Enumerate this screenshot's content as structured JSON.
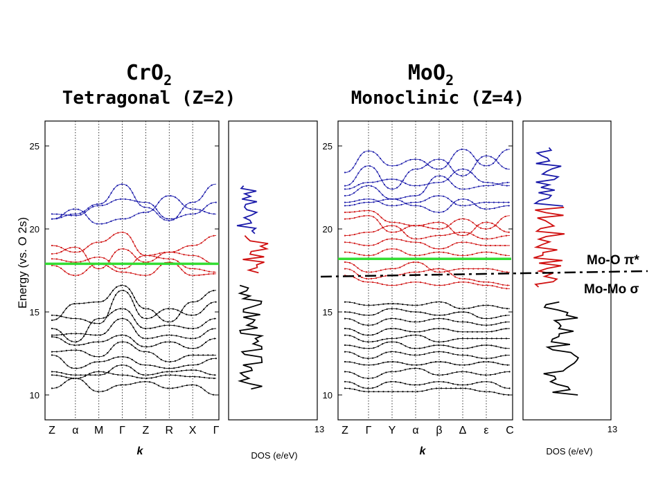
{
  "crO2": {
    "title_main": "CrO",
    "title_sub": "2",
    "subtitle": "Tetragonal (Z=2)"
  },
  "moO2": {
    "title_main": "MoO",
    "title_sub": "2",
    "subtitle": "Monoclinic (Z=4)"
  },
  "annotations": {
    "mo_o_pi": "Mo-O π*",
    "mo_mo_sigma": "Mo-Mo σ"
  },
  "colors": {
    "conduction_upper": "#1a1aaa",
    "conduction_lower": "#d01010",
    "valence": "#000000",
    "fermi": "#33dd33"
  },
  "chart_data": [
    {
      "type": "line",
      "name": "CrO2 band structure",
      "ylabel": "Energy (vs. O 2s)",
      "xlabel": "k",
      "ylim": [
        8.5,
        26.5
      ],
      "yticks": [
        10,
        15,
        20,
        25
      ],
      "kpoints": [
        "Z",
        "α",
        "M",
        "Γ",
        "Z",
        "R",
        "X",
        "Γ"
      ],
      "fermi_level": 17.9,
      "bands": {
        "blue": [
          {
            "y": [
              20.6,
              20.9,
              21.5,
              22.7,
              21.3,
              20.5,
              21.6,
              22.7
            ]
          },
          {
            "y": [
              20.9,
              20.8,
              21.4,
              21.8,
              21.6,
              20.6,
              20.9,
              21.6
            ]
          },
          {
            "y": [
              20.6,
              21.2,
              20.3,
              20.6,
              21.0,
              22.0,
              21.2,
              20.9
            ]
          }
        ],
        "red": [
          {
            "y": [
              19.0,
              18.6,
              19.2,
              19.8,
              18.4,
              18.6,
              19.0,
              19.6
            ]
          },
          {
            "y": [
              18.2,
              18.0,
              18.3,
              17.6,
              18.4,
              18.2,
              17.6,
              17.4
            ]
          },
          {
            "y": [
              18.5,
              18.9,
              17.6,
              18.8,
              18.0,
              18.6,
              18.4,
              17.9
            ]
          },
          {
            "y": [
              17.8,
              17.2,
              17.9,
              17.4,
              17.2,
              18.0,
              17.2,
              17.3
            ]
          }
        ],
        "black": [
          {
            "y": [
              14.5,
              15.5,
              15.6,
              16.6,
              15.2,
              14.4,
              15.6,
              16.3
            ]
          },
          {
            "y": [
              14.8,
              14.6,
              14.3,
              16.3,
              14.6,
              15.2,
              14.8,
              15.6
            ]
          },
          {
            "y": [
              14.0,
              13.2,
              14.6,
              15.2,
              14.0,
              14.2,
              14.0,
              14.6
            ]
          },
          {
            "y": [
              13.6,
              13.7,
              13.6,
              14.6,
              13.4,
              13.6,
              13.4,
              14.0
            ]
          },
          {
            "y": [
              13.5,
              13.0,
              13.2,
              13.6,
              12.9,
              13.2,
              12.8,
              13.4
            ]
          },
          {
            "y": [
              12.6,
              12.7,
              12.3,
              13.2,
              12.6,
              12.0,
              12.4,
              12.4
            ]
          },
          {
            "y": [
              12.4,
              11.6,
              12.0,
              12.3,
              11.8,
              11.6,
              11.8,
              12.2
            ]
          },
          {
            "y": [
              11.4,
              11.2,
              11.2,
              11.8,
              11.2,
              11.4,
              11.5,
              11.2
            ]
          },
          {
            "y": [
              11.2,
              11.0,
              11.4,
              11.2,
              11.0,
              11.2,
              11.1,
              11.0
            ]
          },
          {
            "y": [
              10.4,
              11.0,
              10.2,
              10.6,
              10.8,
              10.4,
              10.6,
              10.0
            ]
          }
        ]
      },
      "dos_xlabel": "DOS (e/eV)",
      "dos_xmax": 13
    },
    {
      "type": "line",
      "name": "MoO2 band structure",
      "xlabel": "k",
      "ylim": [
        8.5,
        26.5
      ],
      "yticks": [
        10,
        15,
        20,
        25
      ],
      "kpoints": [
        "Z",
        "Γ",
        "Y",
        "α",
        "β",
        "Δ",
        "ε",
        "C"
      ],
      "fermi_level": 18.2,
      "bands": {
        "blue": [
          {
            "y": [
              23.4,
              24.7,
              23.8,
              24.2,
              23.6,
              24.8,
              23.8,
              24.8
            ]
          },
          {
            "y": [
              22.6,
              23.8,
              22.4,
              23.6,
              24.2,
              23.2,
              24.4,
              23.6
            ]
          },
          {
            "y": [
              22.4,
              22.8,
              23.0,
              22.6,
              22.8,
              23.6,
              22.8,
              22.6
            ]
          },
          {
            "y": [
              22.0,
              22.6,
              21.8,
              22.0,
              23.2,
              22.4,
              22.6,
              22.8
            ]
          },
          {
            "y": [
              21.6,
              21.8,
              21.4,
              21.6,
              22.0,
              21.4,
              21.6,
              21.6
            ]
          },
          {
            "y": [
              21.4,
              21.6,
              21.8,
              21.4,
              21.0,
              21.8,
              21.2,
              21.4
            ]
          }
        ],
        "red": [
          {
            "y": [
              21.0,
              21.1,
              20.4,
              20.2,
              20.0,
              20.6,
              20.0,
              20.8
            ]
          },
          {
            "y": [
              20.6,
              20.8,
              19.8,
              20.2,
              20.4,
              19.6,
              20.4,
              19.8
            ]
          },
          {
            "y": [
              19.6,
              19.8,
              20.2,
              19.4,
              19.6,
              19.8,
              19.4,
              19.6
            ]
          },
          {
            "y": [
              19.2,
              19.0,
              19.4,
              19.2,
              18.8,
              19.2,
              19.0,
              19.0
            ]
          },
          {
            "y": [
              18.6,
              18.4,
              18.8,
              18.4,
              18.6,
              18.4,
              18.6,
              18.4
            ]
          },
          {
            "y": [
              18.0,
              17.4,
              17.6,
              18.0,
              17.4,
              17.6,
              17.6,
              17.4
            ]
          },
          {
            "y": [
              17.6,
              17.0,
              17.2,
              17.4,
              17.6,
              17.0,
              16.8,
              16.6
            ]
          },
          {
            "y": [
              17.2,
              16.8,
              16.6,
              16.8,
              16.6,
              16.8,
              16.6,
              16.4
            ]
          }
        ],
        "black": [
          {
            "y": [
              15.6,
              15.4,
              15.5,
              15.4,
              15.6,
              15.2,
              15.4,
              15.2
            ]
          },
          {
            "y": [
              15.0,
              14.8,
              15.2,
              15.0,
              14.8,
              15.0,
              14.6,
              14.8
            ]
          },
          {
            "y": [
              14.6,
              14.2,
              14.6,
              14.4,
              14.6,
              14.4,
              14.2,
              14.4
            ]
          },
          {
            "y": [
              14.0,
              13.6,
              14.0,
              13.8,
              14.0,
              13.8,
              13.8,
              14.0
            ]
          },
          {
            "y": [
              13.6,
              13.2,
              13.4,
              13.6,
              13.2,
              13.4,
              13.4,
              13.4
            ]
          },
          {
            "y": [
              13.0,
              12.8,
              13.2,
              12.8,
              13.0,
              12.8,
              13.0,
              12.8
            ]
          },
          {
            "y": [
              12.6,
              12.2,
              12.6,
              12.4,
              12.6,
              12.4,
              12.2,
              12.4
            ]
          },
          {
            "y": [
              12.0,
              11.8,
              12.0,
              11.8,
              12.0,
              11.8,
              12.0,
              11.8
            ]
          },
          {
            "y": [
              11.4,
              11.0,
              11.4,
              11.6,
              11.2,
              11.4,
              11.2,
              11.4
            ]
          },
          {
            "y": [
              10.8,
              10.4,
              10.8,
              10.6,
              10.8,
              10.6,
              10.8,
              10.4
            ]
          },
          {
            "y": [
              10.4,
              10.2,
              10.2,
              10.2,
              10.4,
              10.4,
              10.2,
              10.0
            ]
          }
        ]
      },
      "dos_xlabel": "DOS (e/eV)",
      "dos_xmax": 13
    }
  ]
}
